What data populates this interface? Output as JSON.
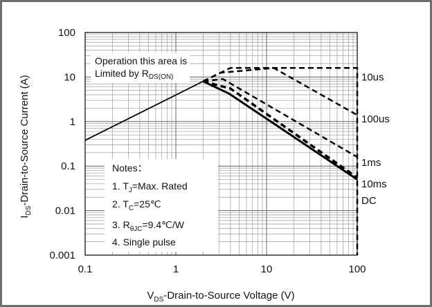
{
  "chart_data": {
    "type": "line",
    "xscale": "log",
    "yscale": "log",
    "xlim": [
      0.1,
      100
    ],
    "ylim": [
      0.001,
      100
    ],
    "grid": true,
    "xlabel": {
      "main": "V",
      "sub": "DS",
      "rest": "-Drain-to-Source Voltage  (V)"
    },
    "ylabel": {
      "main": "I",
      "sub": "DS",
      "rest": "-Drain-to-Source Current (A)"
    },
    "x_ticks": [
      {
        "v": 0.1,
        "label": "0.1"
      },
      {
        "v": 1,
        "label": "1"
      },
      {
        "v": 10,
        "label": "10"
      },
      {
        "v": 100,
        "label": "100"
      }
    ],
    "y_ticks": [
      {
        "v": 100,
        "label": "100"
      },
      {
        "v": 10,
        "label": "10"
      },
      {
        "v": 1,
        "label": "1"
      },
      {
        "v": 0.1,
        "label": "0.1"
      },
      {
        "v": 0.01,
        "label": "0.01"
      },
      {
        "v": 0.001,
        "label": "0.001"
      }
    ],
    "series": [
      {
        "name": "RDS(ON) limit",
        "style": "solid",
        "width": 1.8,
        "x": [
          0.1,
          2
        ],
        "y": [
          0.38,
          8
        ]
      },
      {
        "name": "10us",
        "style": "dashed",
        "width": 2.5,
        "x": [
          2,
          3.1,
          4,
          100,
          100
        ],
        "y": [
          8,
          12.5,
          16,
          16,
          0.001
        ]
      },
      {
        "name": "100us",
        "style": "dashed",
        "width": 2.5,
        "x": [
          2,
          3.1,
          12,
          100
        ],
        "y": [
          8,
          12.5,
          16,
          1.4
        ]
      },
      {
        "name": "1ms",
        "style": "dashed",
        "width": 2.5,
        "x": [
          2,
          3.3,
          100
        ],
        "y": [
          8,
          9,
          0.16
        ]
      },
      {
        "name": "10ms",
        "style": "dashed",
        "width": 3.5,
        "x": [
          2,
          4,
          100
        ],
        "y": [
          8,
          5.5,
          0.055
        ]
      },
      {
        "name": "DC",
        "style": "solid",
        "width": 3,
        "x": [
          2,
          3.9,
          100
        ],
        "y": [
          8,
          4.2,
          0.05
        ]
      }
    ],
    "curve_labels": [
      {
        "text": "10us",
        "x": 100,
        "y": 10
      },
      {
        "text": "100us",
        "x": 100,
        "y": 1.15
      },
      {
        "text": "1ms",
        "x": 100,
        "y": 0.12
      },
      {
        "text": "10ms",
        "x": 100,
        "y": 0.04
      },
      {
        "text": "DC",
        "x": 100,
        "y": 0.017
      }
    ],
    "annotation": {
      "line1": "Operation this area is",
      "line2": "Limited  by R",
      "line2_sub": "DS(ON)"
    },
    "notes": {
      "title": "Notes：",
      "items": [
        {
          "prefix": "1. T",
          "sub": "J",
          "suffix": "=Max. Rated"
        },
        {
          "prefix": "2. T",
          "sub": "C",
          "suffix": "=25℃"
        },
        {
          "prefix": "3. R",
          "sub": "θJC",
          "suffix": "=9.4℃/W"
        },
        {
          "prefix": "4. Single pulse",
          "sub": "",
          "suffix": ""
        }
      ]
    }
  }
}
